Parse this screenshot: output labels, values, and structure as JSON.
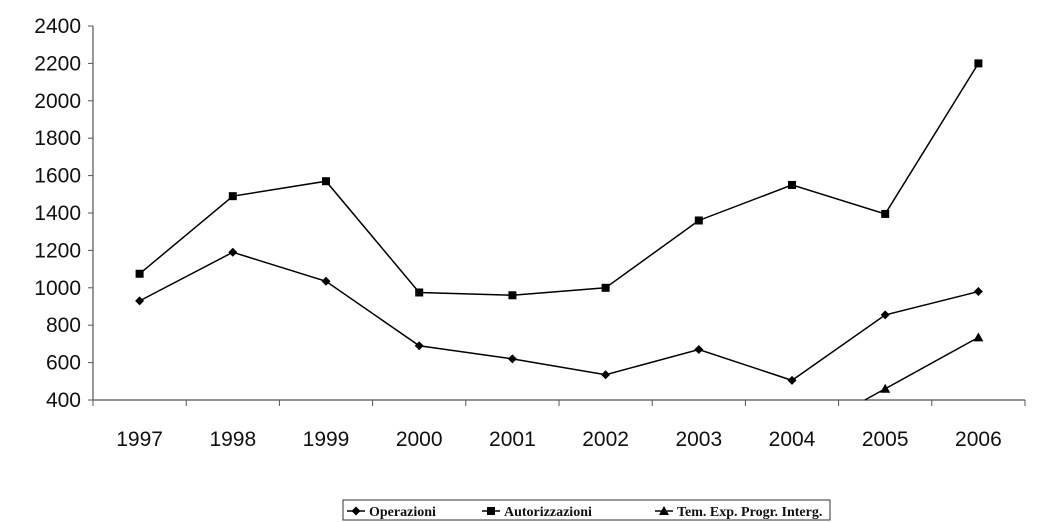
{
  "chart_data": {
    "type": "line",
    "title": "",
    "xlabel": "",
    "ylabel": "",
    "categories": [
      "1997",
      "1998",
      "1999",
      "2000",
      "2001",
      "2002",
      "2003",
      "2004",
      "2005",
      "2006"
    ],
    "ylim": [
      400,
      2400
    ],
    "yticks": [
      "400",
      "600",
      "800",
      "1000",
      "1200",
      "1400",
      "1600",
      "1800",
      "2000",
      "2200",
      "2400"
    ],
    "grid": false,
    "legend_position": "bottom",
    "series": [
      {
        "name": "Operazioni",
        "marker": "diamond",
        "values": [
          930,
          1190,
          1035,
          690,
          620,
          535,
          670,
          505,
          855,
          980
        ]
      },
      {
        "name": "Autorizzazioni",
        "marker": "square",
        "values": [
          1075,
          1490,
          1570,
          975,
          960,
          1000,
          1360,
          1550,
          1395,
          2200
        ]
      },
      {
        "name": "Tem. Exp. Progr. Interg.",
        "marker": "triangle",
        "values": [
          null,
          null,
          null,
          null,
          null,
          null,
          null,
          null,
          460,
          735
        ],
        "line_from_below_axis": true
      }
    ],
    "colors": {
      "line": "#000000",
      "axis": "#555555"
    }
  }
}
